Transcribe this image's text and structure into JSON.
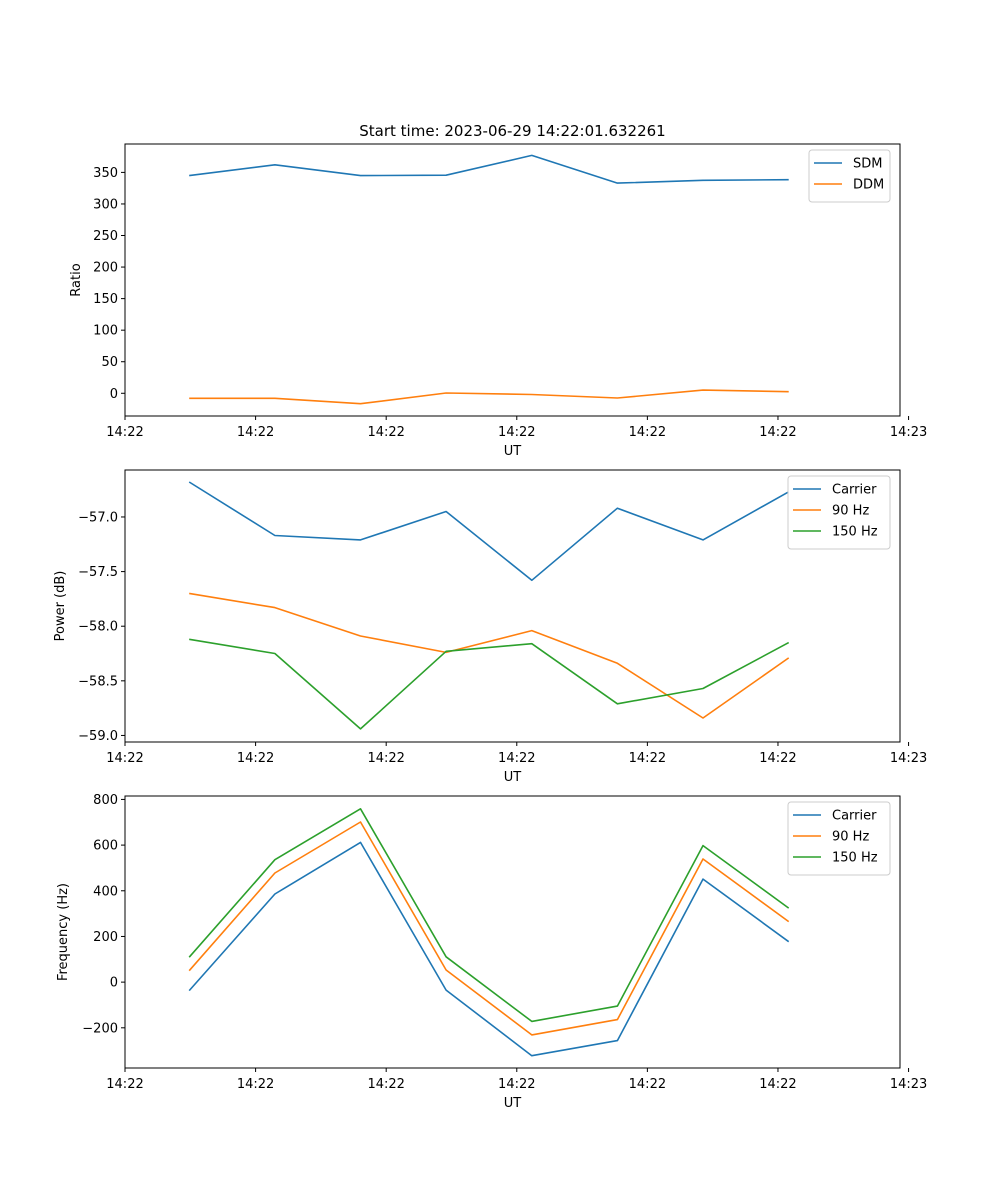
{
  "figure": {
    "title": "Start time: 2023-06-29 14:22:01.632261"
  },
  "chart_data": [
    {
      "type": "line",
      "xlabel": "UT",
      "ylabel": "Ratio",
      "x": [
        1,
        2,
        3,
        4,
        5,
        6,
        7,
        8
      ],
      "xlim": [
        0.25,
        9.3
      ],
      "xticks": [
        {
          "x": 0.25,
          "label": "14:22"
        },
        {
          "x": 1.775,
          "label": "14:22"
        },
        {
          "x": 3.3,
          "label": "14:22"
        },
        {
          "x": 4.825,
          "label": "14:22"
        },
        {
          "x": 6.35,
          "label": "14:22"
        },
        {
          "x": 7.875,
          "label": "14:22"
        },
        {
          "x": 9.4,
          "label": "14:23"
        }
      ],
      "ylim": [
        -36,
        395
      ],
      "yticks": [
        0,
        50,
        100,
        150,
        200,
        250,
        300,
        350
      ],
      "yticklabels": [
        "0",
        "50",
        "100",
        "150",
        "200",
        "250",
        "300",
        "350"
      ],
      "legend": "top-right",
      "grid": false,
      "series": [
        {
          "name": "SDM",
          "color": "#1f77b4",
          "values": [
            345,
            362,
            345,
            345.5,
            377,
            333,
            337.5,
            338.5
          ]
        },
        {
          "name": "DDM",
          "color": "#ff7f0e",
          "values": [
            -8,
            -8,
            -16.5,
            0.5,
            -2,
            -7.5,
            5,
            2.5
          ]
        }
      ]
    },
    {
      "type": "line",
      "xlabel": "UT",
      "ylabel": "Power (dB)",
      "x": [
        1,
        2,
        3,
        4,
        5,
        6,
        7,
        8
      ],
      "xlim": [
        0.25,
        9.3
      ],
      "xticks": [
        {
          "x": 0.25,
          "label": "14:22"
        },
        {
          "x": 1.775,
          "label": "14:22"
        },
        {
          "x": 3.3,
          "label": "14:22"
        },
        {
          "x": 4.825,
          "label": "14:22"
        },
        {
          "x": 6.35,
          "label": "14:22"
        },
        {
          "x": 7.875,
          "label": "14:22"
        },
        {
          "x": 9.4,
          "label": "14:23"
        }
      ],
      "ylim": [
        -59.06,
        -56.57
      ],
      "yticks": [
        -59.0,
        -58.5,
        -58.0,
        -57.5,
        -57.0
      ],
      "yticklabels": [
        "−59.0",
        "−58.5",
        "−58.0",
        "−57.5",
        "−57.0"
      ],
      "legend": "top-right",
      "grid": false,
      "series": [
        {
          "name": "Carrier",
          "color": "#1f77b4",
          "values": [
            -56.68,
            -57.17,
            -57.21,
            -56.95,
            -57.58,
            -56.92,
            -57.21,
            -56.77
          ]
        },
        {
          "name": "90 Hz",
          "color": "#ff7f0e",
          "values": [
            -57.7,
            -57.83,
            -58.09,
            -58.24,
            -58.04,
            -58.34,
            -58.84,
            -58.29
          ]
        },
        {
          "name": "150 Hz",
          "color": "#2ca02c",
          "values": [
            -58.12,
            -58.25,
            -58.94,
            -58.23,
            -58.16,
            -58.71,
            -58.57,
            -58.15
          ]
        }
      ]
    },
    {
      "type": "line",
      "xlabel": "UT",
      "ylabel": "Frequency (Hz)",
      "x": [
        1,
        2,
        3,
        4,
        5,
        6,
        7,
        8
      ],
      "xlim": [
        0.25,
        9.3
      ],
      "xticks": [
        {
          "x": 0.25,
          "label": "14:22"
        },
        {
          "x": 1.775,
          "label": "14:22"
        },
        {
          "x": 3.3,
          "label": "14:22"
        },
        {
          "x": 4.825,
          "label": "14:22"
        },
        {
          "x": 6.35,
          "label": "14:22"
        },
        {
          "x": 7.875,
          "label": "14:22"
        },
        {
          "x": 9.4,
          "label": "14:23"
        }
      ],
      "ylim": [
        -376,
        815
      ],
      "yticks": [
        -200,
        0,
        200,
        400,
        600,
        800
      ],
      "yticklabels": [
        "−200",
        "0",
        "200",
        "400",
        "600",
        "800"
      ],
      "legend": "top-right",
      "grid": false,
      "series": [
        {
          "name": "Carrier",
          "color": "#1f77b4",
          "values": [
            -37,
            386,
            612,
            -35,
            -322,
            -256,
            451,
            177
          ]
        },
        {
          "name": "90 Hz",
          "color": "#ff7f0e",
          "values": [
            50,
            478,
            701,
            53,
            -231,
            -164,
            539,
            265
          ]
        },
        {
          "name": "150 Hz",
          "color": "#2ca02c",
          "values": [
            109,
            536,
            759,
            111,
            -172,
            -105,
            598,
            324
          ]
        }
      ]
    }
  ]
}
